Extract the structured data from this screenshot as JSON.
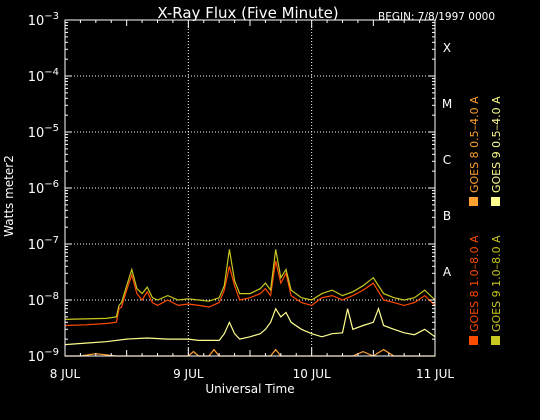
{
  "colors": {
    "background": "#000000",
    "foreground": "#ffffff",
    "goes8_long": "#ff4b00",
    "goes8_short": "#ffa030",
    "goes9_long": "#c8c820",
    "goes9_short": "#ffff90"
  },
  "chart_data": {
    "type": "line",
    "title": "X-Ray Flux (Five Minute)",
    "begin_label": "BEGIN: 7/8/1997 0000",
    "xlabel": "Universal Time",
    "ylabel": "Watts meter2",
    "y_scale": "log",
    "ylim": [
      1e-09,
      0.001
    ],
    "xlim": [
      0,
      72
    ],
    "x_unit": "hours since 8 JUL 1997 0000 UT",
    "grid": "dotted",
    "legend_position": "right, vertical text",
    "x_ticks": [
      {
        "value": 0,
        "label": "8 JUL"
      },
      {
        "value": 24,
        "label": "9 JUL"
      },
      {
        "value": 48,
        "label": "10 JUL"
      },
      {
        "value": 72,
        "label": "11 JUL"
      }
    ],
    "y_ticks": [
      {
        "value": 1e-09,
        "base": "10",
        "exp": "−9"
      },
      {
        "value": 1e-08,
        "base": "10",
        "exp": "−8"
      },
      {
        "value": 1e-07,
        "base": "10",
        "exp": "−7"
      },
      {
        "value": 1e-06,
        "base": "10",
        "exp": "−6"
      },
      {
        "value": 1e-05,
        "base": "10",
        "exp": "−5"
      },
      {
        "value": 0.0001,
        "base": "10",
        "exp": "−4"
      },
      {
        "value": 0.001,
        "base": "10",
        "exp": "−3"
      }
    ],
    "flare_classes": [
      {
        "value": 0.0001,
        "label": "X"
      },
      {
        "value": 1e-05,
        "label": "M"
      },
      {
        "value": 1e-06,
        "label": "C"
      },
      {
        "value": 1e-07,
        "label": "B"
      },
      {
        "value": 1e-08,
        "label": "A"
      }
    ],
    "series": [
      {
        "name": "GOES 8 1.0–8.0 A",
        "color": "#ff4b00",
        "x": [
          0,
          4,
          8,
          10,
          10.5,
          11,
          12,
          13,
          14,
          15,
          16,
          17,
          18,
          20,
          22,
          24,
          26,
          28,
          30,
          31,
          32,
          33,
          34,
          36,
          38,
          39,
          40,
          41,
          42,
          43,
          44,
          46,
          48,
          50,
          52,
          54,
          56,
          58,
          60,
          62,
          64,
          66,
          68,
          70,
          72
        ],
        "y": [
          3.5e-09,
          3.6e-09,
          3.8e-09,
          4e-09,
          7e-09,
          7.5e-09,
          1.5e-08,
          2.8e-08,
          1.3e-08,
          1e-08,
          1.4e-08,
          9e-09,
          8e-09,
          1e-08,
          8e-09,
          8.5e-09,
          8e-09,
          7.5e-09,
          9e-09,
          1.5e-08,
          4e-08,
          1.8e-08,
          1e-08,
          1.1e-08,
          1.3e-08,
          1.6e-08,
          1.2e-08,
          5e-08,
          2e-08,
          3e-08,
          1.2e-08,
          9e-09,
          8e-09,
          1.1e-08,
          1.2e-08,
          1e-08,
          1.2e-08,
          1.5e-08,
          2e-08,
          1e-08,
          9e-09,
          8e-09,
          9e-09,
          1.2e-08,
          8e-09
        ]
      },
      {
        "name": "GOES 8 0.5–4.0 A",
        "color": "#ffa030",
        "x": [
          0,
          3,
          6,
          10,
          12,
          14,
          16,
          20,
          24,
          25,
          26,
          28,
          29,
          30,
          32,
          34,
          36,
          38,
          40,
          41,
          42,
          44,
          46,
          48,
          50,
          52,
          54,
          56,
          58,
          60,
          62,
          64,
          66,
          68,
          70,
          72
        ],
        "y": [
          1e-09,
          1e-09,
          1.1e-09,
          1e-09,
          1e-09,
          1e-09,
          1e-09,
          1e-09,
          1e-09,
          1.2e-09,
          1e-09,
          1e-09,
          1.3e-09,
          1e-09,
          1e-09,
          1e-09,
          1e-09,
          1e-09,
          1e-09,
          1.3e-09,
          1e-09,
          1e-09,
          1e-09,
          1e-09,
          1e-09,
          1e-09,
          1e-09,
          1e-09,
          1.2e-09,
          1e-09,
          1.3e-09,
          1e-09,
          1e-09,
          1e-09,
          1e-09,
          1e-09
        ]
      },
      {
        "name": "GOES 9 1.0–8.0 A",
        "color": "#c8c820",
        "x": [
          0,
          4,
          8,
          10,
          10.5,
          11,
          12,
          13,
          14,
          15,
          16,
          17,
          18,
          20,
          22,
          24,
          26,
          28,
          30,
          31,
          32,
          33,
          34,
          36,
          38,
          39,
          40,
          41,
          42,
          43,
          44,
          46,
          48,
          50,
          52,
          54,
          56,
          58,
          60,
          62,
          64,
          66,
          68,
          70,
          72
        ],
        "y": [
          4.5e-09,
          4.6e-09,
          4.7e-09,
          5e-09,
          8e-09,
          9e-09,
          1.8e-08,
          3.5e-08,
          1.6e-08,
          1.3e-08,
          1.7e-08,
          1.1e-08,
          1e-08,
          1.2e-08,
          1e-08,
          1.05e-08,
          1e-08,
          9.5e-09,
          1.1e-08,
          1.8e-08,
          8e-08,
          2.2e-08,
          1.3e-08,
          1.3e-08,
          1.6e-08,
          2e-08,
          1.5e-08,
          8e-08,
          2.5e-08,
          3.5e-08,
          1.5e-08,
          1.1e-08,
          1e-08,
          1.3e-08,
          1.5e-08,
          1.2e-08,
          1.4e-08,
          1.8e-08,
          2.5e-08,
          1.3e-08,
          1.1e-08,
          1e-08,
          1.1e-08,
          1.5e-08,
          1e-08
        ]
      },
      {
        "name": "GOES 9 0.5–4.0 A",
        "color": "#ffff90",
        "x": [
          0,
          4,
          8,
          12,
          16,
          20,
          24,
          26,
          28,
          30,
          31,
          32,
          33,
          34,
          36,
          38,
          39,
          40,
          41,
          42,
          43,
          44,
          46,
          48,
          50,
          52,
          54,
          55,
          56,
          58,
          60,
          61,
          62,
          64,
          66,
          68,
          70,
          72
        ],
        "y": [
          1.6e-09,
          1.7e-09,
          1.8e-09,
          2e-09,
          2.1e-09,
          2e-09,
          2e-09,
          1.9e-09,
          1.9e-09,
          1.9e-09,
          2.5e-09,
          4e-09,
          2.5e-09,
          2e-09,
          2.2e-09,
          2.5e-09,
          3e-09,
          4e-09,
          7e-09,
          5e-09,
          6e-09,
          4e-09,
          3e-09,
          2.5e-09,
          2.2e-09,
          2.5e-09,
          2.6e-09,
          7e-09,
          3e-09,
          3.5e-09,
          4e-09,
          7e-09,
          3.5e-09,
          3e-09,
          2.6e-09,
          2.4e-09,
          3e-09,
          2.2e-09
        ]
      }
    ]
  }
}
